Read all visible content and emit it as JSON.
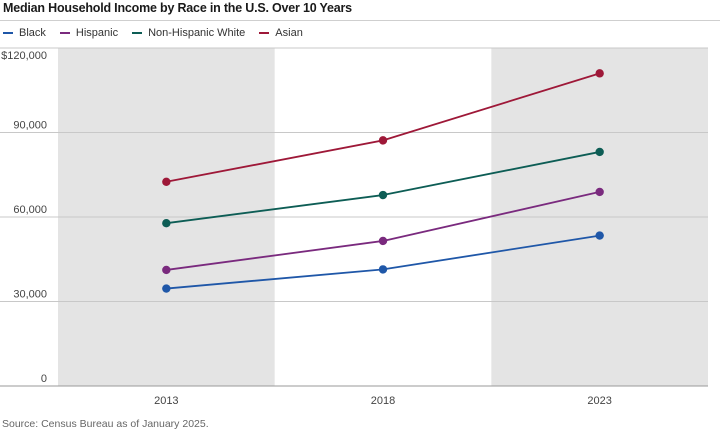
{
  "chart_data": {
    "type": "line",
    "title": "Median Household Income by Race in the U.S. Over 10 Years",
    "xlabel": "",
    "ylabel": "",
    "x": [
      "2013",
      "2018",
      "2023"
    ],
    "ylim": [
      0,
      120000
    ],
    "y_ticks": [
      {
        "value": 0,
        "label": "0"
      },
      {
        "value": 30000,
        "label": "30,000"
      },
      {
        "value": 60000,
        "label": "60,000"
      },
      {
        "value": 90000,
        "label": "90,000"
      },
      {
        "value": 120000,
        "label": "$120,000"
      }
    ],
    "grid": true,
    "legend_position": "top-left",
    "series": [
      {
        "name": "Black",
        "color": "#1f57a8",
        "values": [
          34600,
          41400,
          53400
        ]
      },
      {
        "name": "Hispanic",
        "color": "#7a2a7e",
        "values": [
          41200,
          51500,
          68900
        ]
      },
      {
        "name": "Non-Hispanic White",
        "color": "#0d5d55",
        "values": [
          57800,
          67800,
          83100
        ]
      },
      {
        "name": "Asian",
        "color": "#9e1838",
        "values": [
          72500,
          87200,
          111000
        ]
      }
    ],
    "source": "Source: Census Bureau as of January 2025."
  },
  "colors": {
    "band_shade": "#e4e4e4",
    "gridline": "#c8c8c8"
  }
}
